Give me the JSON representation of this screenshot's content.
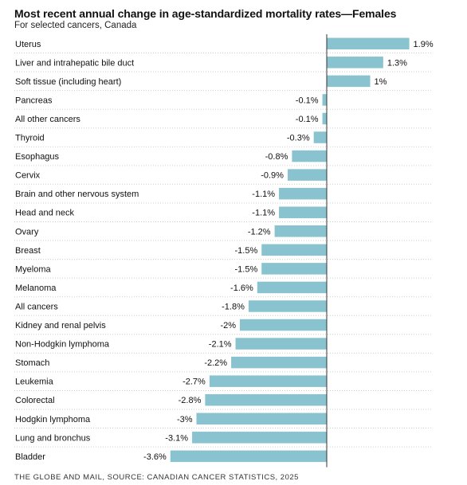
{
  "title": "Most recent annual change in age-standardized mortality rates—Females",
  "subtitle": "For selected cancers, Canada",
  "source": "THE GLOBE AND MAIL, SOURCE: CANADIAN CANCER STATISTICS, 2025",
  "colors": {
    "bar": "#88c3cf",
    "axis": "#333333",
    "divider": "#cfcfcf"
  },
  "chart_data": {
    "type": "bar",
    "orientation": "horizontal",
    "title": "Most recent annual change in age-standardized mortality rates—Females",
    "subtitle": "For selected cancers, Canada",
    "unit": "%",
    "xlim": [
      -3.6,
      1.9
    ],
    "grid": false,
    "categories": [
      "Uterus",
      "Liver and intrahepatic bile duct",
      "Soft tissue (including heart)",
      "Pancreas",
      "All other cancers",
      "Thyroid",
      "Esophagus",
      "Cervix",
      "Brain and other nervous system",
      "Head and neck",
      "Ovary",
      "Breast",
      "Myeloma",
      "Melanoma",
      "All cancers",
      "Kidney and renal pelvis",
      "Non-Hodgkin lymphoma",
      "Stomach",
      "Leukemia",
      "Colorectal",
      "Hodgkin lymphoma",
      "Lung and bronchus",
      "Bladder"
    ],
    "values": [
      1.9,
      1.3,
      1.0,
      -0.1,
      -0.1,
      -0.3,
      -0.8,
      -0.9,
      -1.1,
      -1.1,
      -1.2,
      -1.5,
      -1.5,
      -1.6,
      -1.8,
      -2.0,
      -2.1,
      -2.2,
      -2.7,
      -2.8,
      -3.0,
      -3.1,
      -3.6
    ],
    "value_labels": [
      "1.9%",
      "1.3%",
      "1%",
      "-0.1%",
      "-0.1%",
      "-0.3%",
      "-0.8%",
      "-0.9%",
      "-1.1%",
      "-1.1%",
      "-1.2%",
      "-1.5%",
      "-1.5%",
      "-1.6%",
      "-1.8%",
      "-2%",
      "-2.1%",
      "-2.2%",
      "-2.7%",
      "-2.8%",
      "-3%",
      "-3.1%",
      "-3.6%"
    ]
  }
}
